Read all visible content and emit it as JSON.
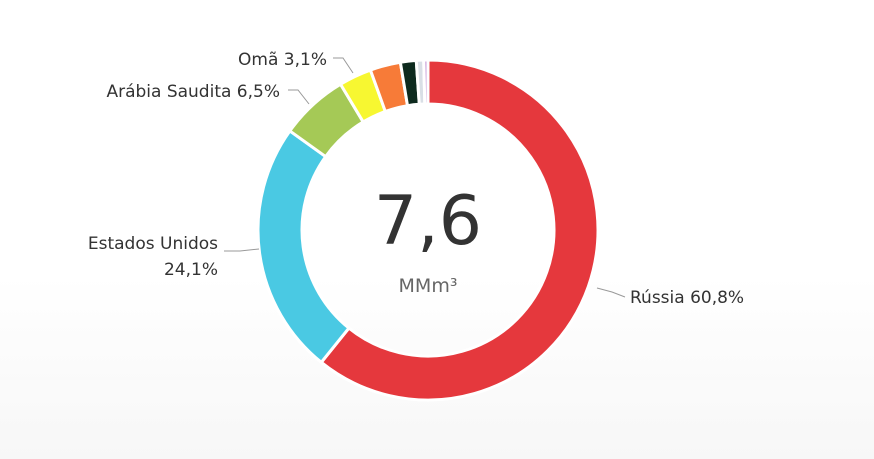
{
  "chart_data": {
    "type": "pie",
    "variant": "donut",
    "center_value": "7,6",
    "center_unit": "MMm³",
    "slices": [
      {
        "name": "Rússia",
        "label": "Rússia 60,8%",
        "value": 60.8,
        "color": "#e5383d"
      },
      {
        "name": "Estados Unidos",
        "label": "24,1%",
        "value": 24.1,
        "color": "#4ac9e3"
      },
      {
        "name": "Arábia Saudita",
        "label": "Arábia Saudita 6,5%",
        "value": 6.5,
        "color": "#a5c956"
      },
      {
        "name": "Omã",
        "label": "Omã 3,1%",
        "value": 3.1,
        "color": "#f7f731"
      },
      {
        "name": "",
        "label": "",
        "value": 2.9,
        "color": "#f77b38"
      },
      {
        "name": "",
        "label": "",
        "value": 1.5,
        "color": "#0d2a1e"
      },
      {
        "name": "",
        "label": "",
        "value": 0.7,
        "color": "#d9dfe6"
      },
      {
        "name": "",
        "label": "",
        "value": 0.4,
        "color": "#c9a0d8"
      }
    ],
    "legend": "none"
  }
}
